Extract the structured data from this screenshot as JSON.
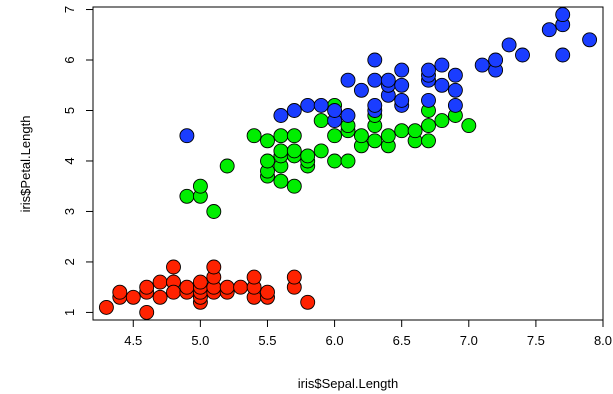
{
  "chart_data": {
    "type": "scatter",
    "title": "",
    "xlabel": "iris$Sepal.Length",
    "ylabel": "iris$Petal.Length",
    "xlim": [
      4.2,
      8.0
    ],
    "ylim": [
      0.85,
      7.05
    ],
    "xticks": [
      "4.5",
      "5.0",
      "5.5",
      "6.0",
      "6.5",
      "7.0",
      "7.5",
      "8.0"
    ],
    "yticks": [
      "1",
      "2",
      "3",
      "4",
      "5",
      "6",
      "7"
    ],
    "grid": false,
    "legend": "none",
    "series": [
      {
        "color": "#ff2200",
        "points": [
          [
            4.3,
            1.1
          ],
          [
            4.4,
            1.3
          ],
          [
            4.4,
            1.4
          ],
          [
            4.5,
            1.3
          ],
          [
            4.6,
            1.0
          ],
          [
            4.6,
            1.4
          ],
          [
            4.6,
            1.5
          ],
          [
            4.7,
            1.3
          ],
          [
            4.7,
            1.6
          ],
          [
            4.8,
            1.9
          ],
          [
            4.8,
            1.6
          ],
          [
            4.8,
            1.4
          ],
          [
            4.9,
            1.4
          ],
          [
            4.9,
            1.5
          ],
          [
            5.0,
            1.2
          ],
          [
            5.0,
            1.3
          ],
          [
            5.0,
            1.4
          ],
          [
            5.0,
            1.5
          ],
          [
            5.0,
            1.6
          ],
          [
            5.1,
            1.4
          ],
          [
            5.1,
            1.5
          ],
          [
            5.1,
            1.7
          ],
          [
            5.1,
            1.9
          ],
          [
            5.2,
            1.4
          ],
          [
            5.2,
            1.5
          ],
          [
            5.3,
            1.5
          ],
          [
            5.4,
            1.3
          ],
          [
            5.4,
            1.5
          ],
          [
            5.4,
            1.7
          ],
          [
            5.5,
            1.3
          ],
          [
            5.5,
            1.4
          ],
          [
            5.7,
            1.5
          ],
          [
            5.7,
            1.7
          ],
          [
            5.8,
            1.2
          ]
        ]
      },
      {
        "color": "#00ee00",
        "points": [
          [
            4.9,
            3.3
          ],
          [
            5.0,
            3.3
          ],
          [
            5.0,
            3.5
          ],
          [
            5.1,
            3.0
          ],
          [
            5.2,
            3.9
          ],
          [
            5.4,
            4.5
          ],
          [
            5.5,
            3.7
          ],
          [
            5.5,
            3.8
          ],
          [
            5.5,
            4.0
          ],
          [
            5.5,
            4.4
          ],
          [
            5.6,
            3.6
          ],
          [
            5.6,
            3.9
          ],
          [
            5.6,
            4.1
          ],
          [
            5.6,
            4.2
          ],
          [
            5.6,
            4.5
          ],
          [
            5.7,
            3.5
          ],
          [
            5.7,
            4.1
          ],
          [
            5.7,
            4.2
          ],
          [
            5.7,
            4.5
          ],
          [
            5.8,
            3.9
          ],
          [
            5.8,
            4.0
          ],
          [
            5.8,
            4.1
          ],
          [
            5.9,
            4.2
          ],
          [
            5.9,
            4.8
          ],
          [
            6.0,
            4.0
          ],
          [
            6.0,
            4.5
          ],
          [
            6.0,
            5.1
          ],
          [
            6.1,
            4.0
          ],
          [
            6.1,
            4.6
          ],
          [
            6.1,
            4.7
          ],
          [
            6.2,
            4.3
          ],
          [
            6.2,
            4.5
          ],
          [
            6.3,
            4.4
          ],
          [
            6.3,
            4.7
          ],
          [
            6.3,
            4.9
          ],
          [
            6.4,
            4.3
          ],
          [
            6.4,
            4.5
          ],
          [
            6.5,
            4.6
          ],
          [
            6.6,
            4.4
          ],
          [
            6.6,
            4.6
          ],
          [
            6.7,
            4.4
          ],
          [
            6.7,
            4.7
          ],
          [
            6.7,
            5.0
          ],
          [
            6.8,
            4.8
          ],
          [
            6.9,
            4.9
          ],
          [
            7.0,
            4.7
          ]
        ]
      },
      {
        "color": "#1a3dff",
        "points": [
          [
            4.9,
            4.5
          ],
          [
            5.6,
            4.9
          ],
          [
            5.7,
            5.0
          ],
          [
            5.8,
            5.1
          ],
          [
            5.9,
            5.1
          ],
          [
            6.0,
            4.8
          ],
          [
            6.0,
            5.0
          ],
          [
            6.1,
            4.9
          ],
          [
            6.1,
            5.6
          ],
          [
            6.2,
            5.4
          ],
          [
            6.3,
            5.0
          ],
          [
            6.3,
            5.1
          ],
          [
            6.3,
            5.6
          ],
          [
            6.3,
            6.0
          ],
          [
            6.4,
            5.3
          ],
          [
            6.4,
            5.5
          ],
          [
            6.4,
            5.6
          ],
          [
            6.5,
            5.1
          ],
          [
            6.5,
            5.2
          ],
          [
            6.5,
            5.5
          ],
          [
            6.5,
            5.8
          ],
          [
            6.7,
            5.2
          ],
          [
            6.7,
            5.6
          ],
          [
            6.7,
            5.7
          ],
          [
            6.7,
            5.8
          ],
          [
            6.8,
            5.5
          ],
          [
            6.8,
            5.9
          ],
          [
            6.9,
            5.1
          ],
          [
            6.9,
            5.4
          ],
          [
            6.9,
            5.7
          ],
          [
            7.1,
            5.9
          ],
          [
            7.2,
            5.8
          ],
          [
            7.2,
            6.0
          ],
          [
            7.3,
            6.3
          ],
          [
            7.4,
            6.1
          ],
          [
            7.6,
            6.6
          ],
          [
            7.7,
            6.1
          ],
          [
            7.7,
            6.7
          ],
          [
            7.7,
            6.9
          ],
          [
            7.9,
            6.4
          ]
        ]
      }
    ]
  }
}
